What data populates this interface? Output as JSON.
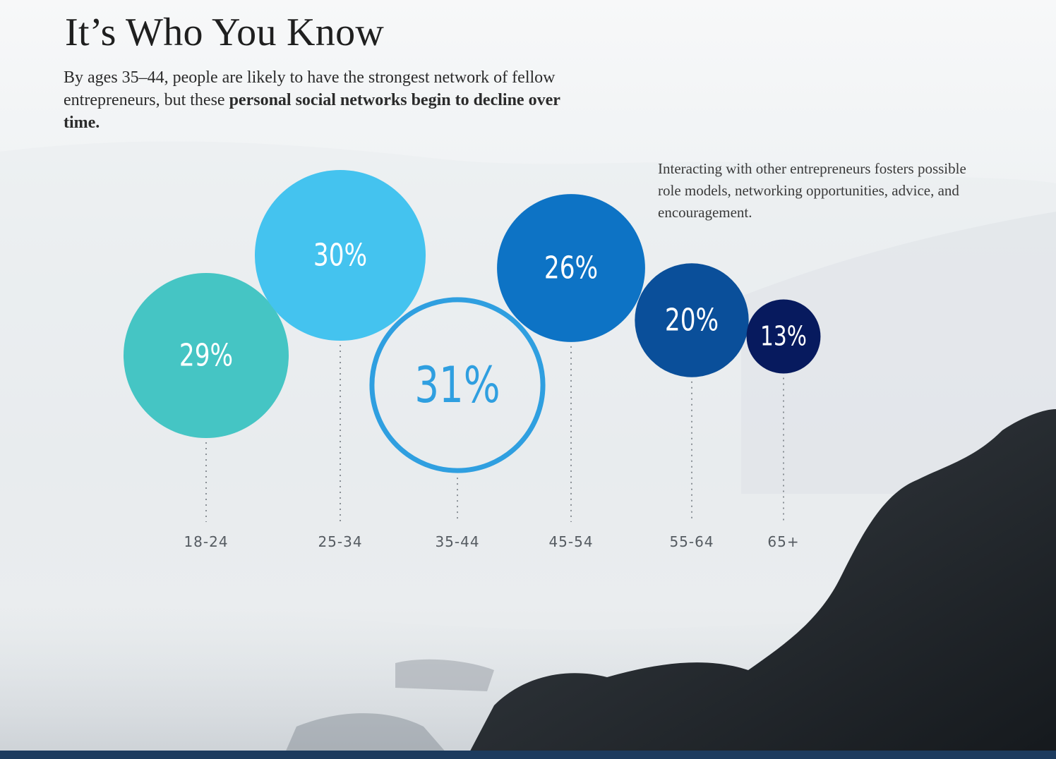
{
  "title": "It’s Who You Know",
  "subtitle": {
    "plain": "By ages 35–44, people are likely to have the strongest network of fellow entrepreneurs, but these ",
    "bold": "personal social networks begin to decline over time."
  },
  "note": "Interacting with other entrepreneurs fosters possible role models, networking opportunities, advice, and encouragement.",
  "chart_data": {
    "type": "bubble",
    "categories": [
      "18-24",
      "25-34",
      "35-44",
      "45-54",
      "55-64",
      "65+"
    ],
    "values": [
      29,
      30,
      31,
      26,
      20,
      13
    ],
    "labels": [
      "29%",
      "30%",
      "31%",
      "26%",
      "20%",
      "13%"
    ],
    "colors": [
      "#45c5c4",
      "#44c3ef",
      "#2f9fe0",
      "#0d73c5",
      "#0a4f9a",
      "#071a5e"
    ],
    "highlight": "35-44",
    "unit": "%"
  }
}
